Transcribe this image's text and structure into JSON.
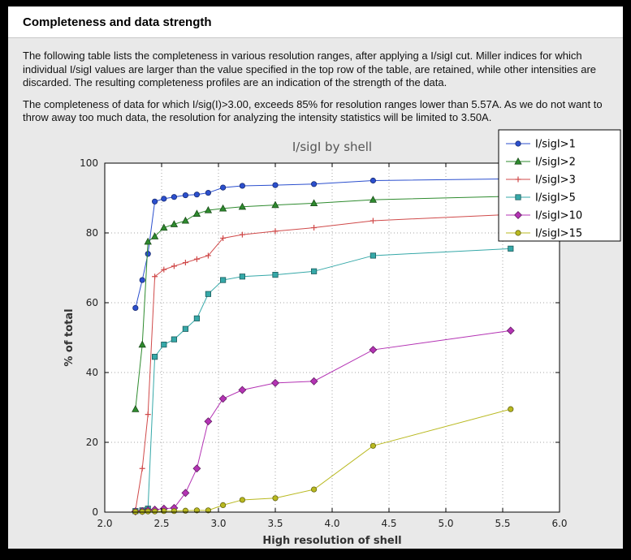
{
  "page": {
    "title": "Completeness and data strength",
    "paragraph1": "The following table lists the completeness in various resolution ranges, after applying a I/sigI cut. Miller indices for which individual I/sigI values are larger than the value specified in the top row of the table, are retained, while other intensities are discarded. The resulting completeness profiles are an indication of the strength of the data.",
    "paragraph2": "The completeness of data for which I/sig(I)>3.00, exceeds  85% for resolution ranges lower than 5.57A. As we do not want to throw away too much data, the resolution for analyzing the intensity statistics will be limited to 3.50A."
  },
  "chart_data": {
    "type": "line",
    "title": "I/sigI by shell",
    "xlabel": "High resolution of shell",
    "ylabel": "% of total",
    "xlim": [
      2.0,
      6.0
    ],
    "ylim": [
      0,
      100
    ],
    "xticks": [
      "2.0",
      "2.5",
      "3.0",
      "3.5",
      "4.0",
      "4.5",
      "5.0",
      "5.5",
      "6.0"
    ],
    "yticks": [
      "0",
      "20",
      "40",
      "60",
      "80",
      "100"
    ],
    "grid": true,
    "legend_position": "upper-right, overlapping top-right of axes",
    "plot_bg": "#ffffff",
    "figure_bg": "#e9e9e9",
    "x": [
      2.27,
      2.33,
      2.38,
      2.44,
      2.52,
      2.61,
      2.71,
      2.81,
      2.91,
      3.04,
      3.21,
      3.5,
      3.84,
      4.36,
      5.57
    ],
    "series": [
      {
        "name": "I/sigI>1",
        "color": "#2b4fce",
        "marker": "circle",
        "values": [
          58.5,
          66.5,
          74,
          89,
          89.8,
          90.3,
          90.8,
          91,
          91.5,
          93,
          93.5,
          93.7,
          94,
          95,
          95.5
        ]
      },
      {
        "name": "I/sigI>2",
        "color": "#2e8b2e",
        "marker": "triangle",
        "values": [
          29.5,
          48,
          77.5,
          79,
          81.5,
          82.5,
          83.5,
          85.5,
          86.5,
          87,
          87.5,
          88,
          88.5,
          89.5,
          90.5
        ]
      },
      {
        "name": "I/sigI>3",
        "color": "#d04a4a",
        "marker": "plus",
        "values": [
          0.5,
          12.5,
          28,
          67.5,
          69.5,
          70.5,
          71.5,
          72.5,
          73.5,
          78.5,
          79.5,
          80.5,
          81.5,
          83.5,
          85.3
        ]
      },
      {
        "name": "I/sigI>5",
        "color": "#35a8a8",
        "marker": "square",
        "values": [
          0.3,
          0.5,
          1,
          44.5,
          48,
          49.5,
          52.5,
          55.5,
          62.5,
          66.5,
          67.5,
          68,
          69,
          73.5,
          75.5
        ]
      },
      {
        "name": "I/sigI>10",
        "color": "#b433b4",
        "marker": "diamond",
        "values": [
          0.2,
          0.3,
          0.5,
          0.7,
          1,
          1.2,
          5.5,
          12.5,
          26,
          32.5,
          35,
          37,
          37.5,
          46.5,
          52
        ]
      },
      {
        "name": "I/sigI>15",
        "color": "#b9b920",
        "marker": "circle",
        "values": [
          0.1,
          0.1,
          0.2,
          0.2,
          0.3,
          0.3,
          0.4,
          0.5,
          0.5,
          2,
          3.5,
          4,
          6.5,
          19,
          29.5
        ]
      }
    ]
  }
}
